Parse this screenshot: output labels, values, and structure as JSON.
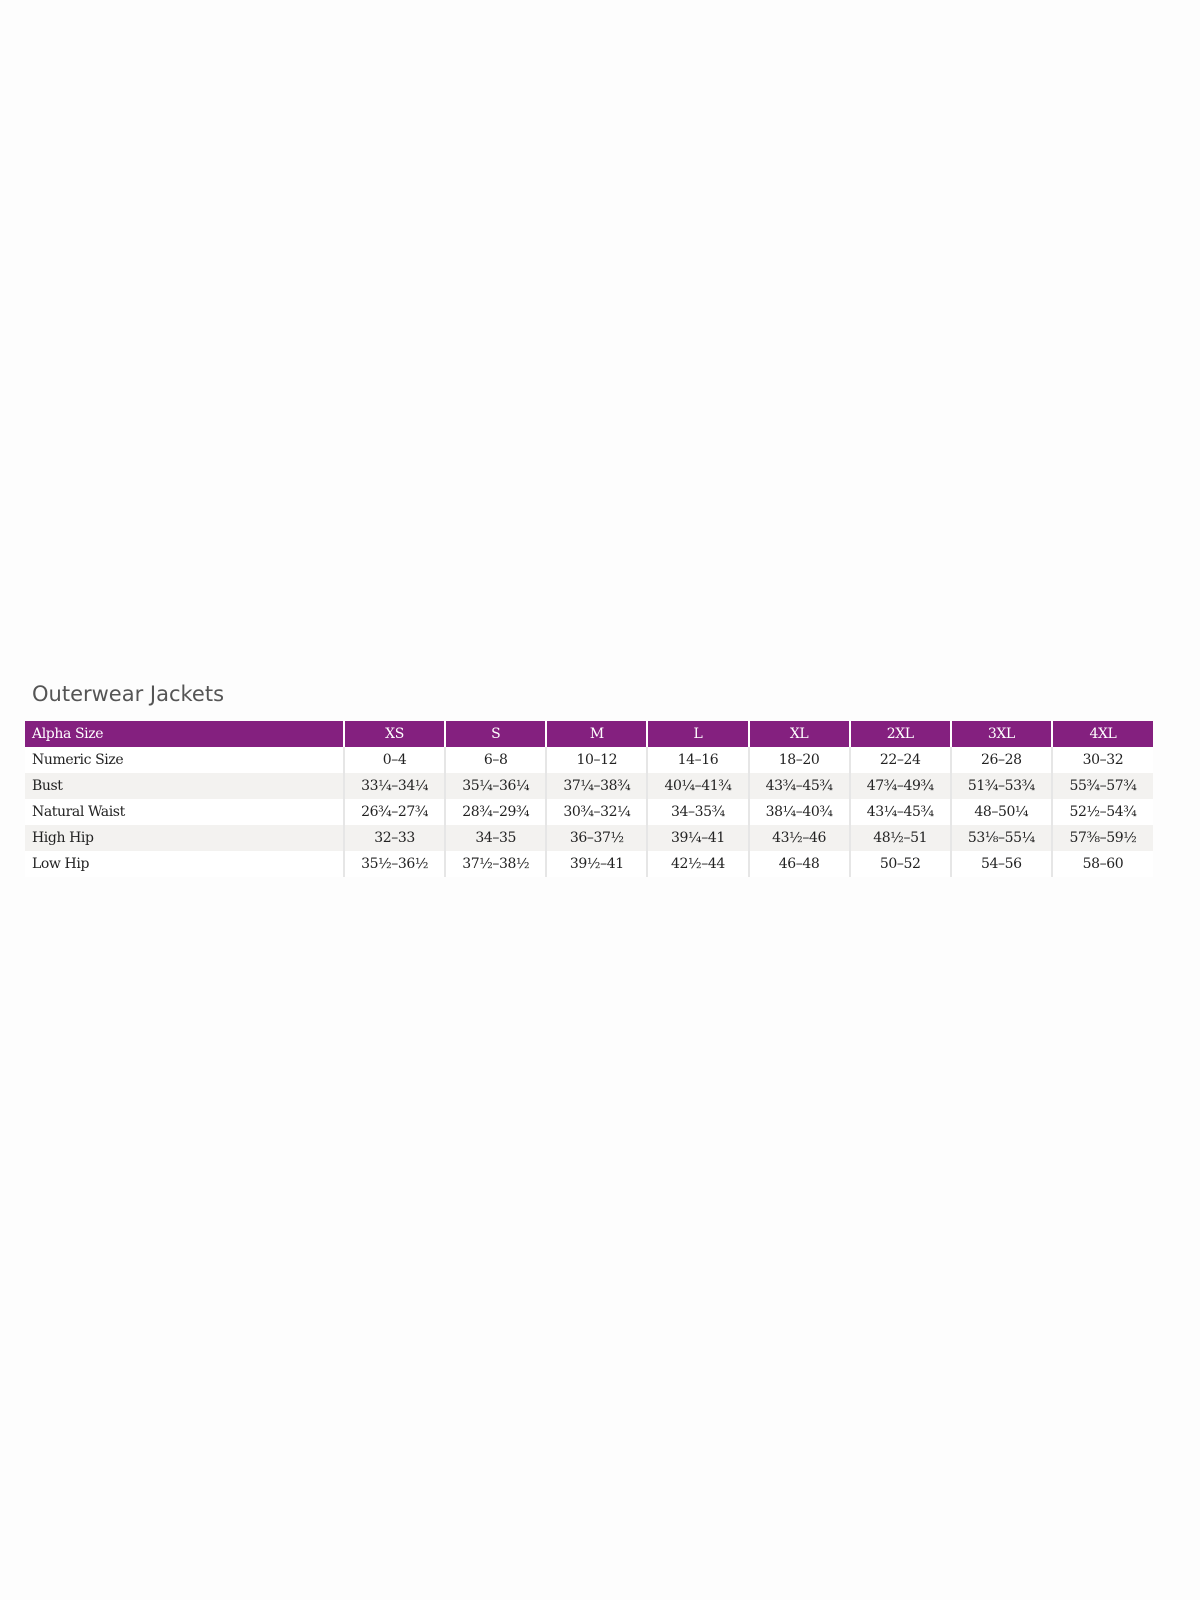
{
  "title": "Outerwear Jackets",
  "colors": {
    "header_bg": "#84207f",
    "stripe": "#f3f2f0"
  },
  "table": {
    "header": [
      "Alpha Size",
      "XS",
      "S",
      "M",
      "L",
      "XL",
      "2XL",
      "3XL",
      "4XL"
    ],
    "rows": [
      [
        "Numeric Size",
        "0–4",
        "6–8",
        "10–12",
        "14–16",
        "18–20",
        "22–24",
        "26–28",
        "30–32"
      ],
      [
        "Bust",
        "33¼–34¼",
        "35¼–36¼",
        "37¼–38¾",
        "40¼–41¾",
        "43¾–45¾",
        "47¾–49¾",
        "51¾–53¾",
        "55¾–57¾"
      ],
      [
        "Natural Waist",
        "26¾–27¾",
        "28¾–29¾",
        "30¾–32¼",
        "34–35¾",
        "38¼–40¾",
        "43¼–45¾",
        "48–50¼",
        "52½–54¾"
      ],
      [
        "High Hip",
        "32–33",
        "34–35",
        "36–37½",
        "39¼–41",
        "43½–46",
        "48½–51",
        "53⅛–55¼",
        "57⅜–59½"
      ],
      [
        "Low Hip",
        "35½–36½",
        "37½–38½",
        "39½–41",
        "42½–44",
        "46–48",
        "50–52",
        "54–56",
        "58–60"
      ]
    ]
  }
}
